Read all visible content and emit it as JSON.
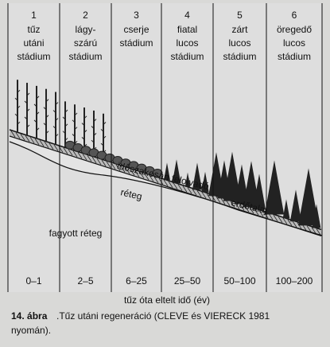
{
  "stages": [
    {
      "number": "1",
      "label": [
        "tűz",
        "utáni",
        "stádium"
      ],
      "years": "0–1"
    },
    {
      "number": "2",
      "label": [
        "lágy-",
        "szárú",
        "stádium"
      ],
      "years": "2–5"
    },
    {
      "number": "3",
      "label": [
        "cserje",
        "stádium"
      ],
      "years": "6–25"
    },
    {
      "number": "4",
      "label": [
        "fiatal",
        "lucos",
        "stádium"
      ],
      "years": "25–50"
    },
    {
      "number": "5",
      "label": [
        "zárt",
        "lucos",
        "stádium"
      ],
      "years": "50–100"
    },
    {
      "number": "6",
      "label": [
        "öregedő",
        "lucos",
        "stádium"
      ],
      "years": "100–200"
    }
  ],
  "layers": {
    "thaw": [
      "időszakosan felolvadó",
      "réteg"
    ],
    "forest_soil": "erdőtalaj",
    "frozen": "fagyott réteg"
  },
  "axis_label": "tűz óta eltelt idő (év)",
  "caption": {
    "number": "14. ábra",
    "line1": ".Tűz utáni regeneráció  (CLEVE és VIERECK 1981",
    "line2": "nyomán)."
  }
}
